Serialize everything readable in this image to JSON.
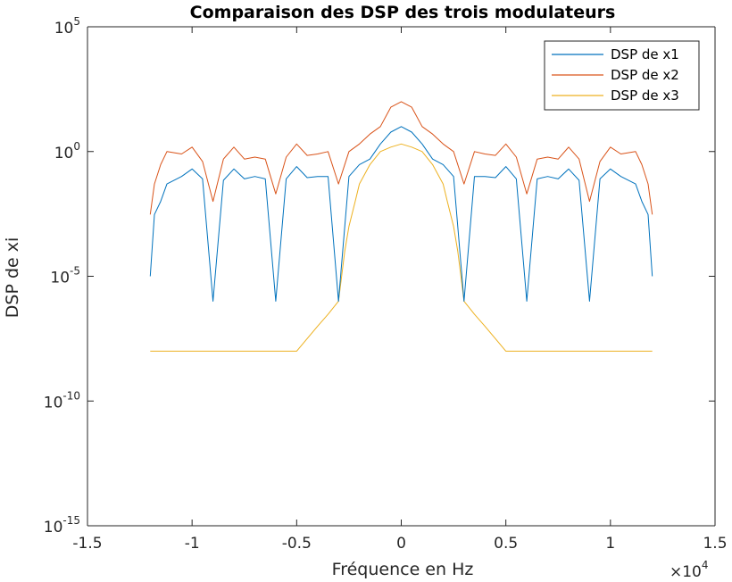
{
  "chart_data": {
    "type": "line",
    "title": "Comparaison des DSP des trois modulateurs",
    "xlabel": "Fréquence en Hz",
    "ylabel": "DSP de xi",
    "x_multiplier_label": "×10",
    "x_multiplier_exp": "4",
    "xlim": [
      -1.5,
      1.5
    ],
    "ylim": [
      1e-15,
      100000
    ],
    "yscale": "log",
    "grid": false,
    "legend_position": "top-right",
    "x_ticks": [
      "-1.5",
      "-1",
      "-0.5",
      "0",
      "0.5",
      "1",
      "1.5"
    ],
    "y_ticks": [
      {
        "base": "10",
        "exp": "-15",
        "value": 1e-15
      },
      {
        "base": "10",
        "exp": "-10",
        "value": 1e-10
      },
      {
        "base": "10",
        "exp": "-5",
        "value": 1e-05
      },
      {
        "base": "10",
        "exp": "0",
        "value": 1
      },
      {
        "base": "10",
        "exp": "5",
        "value": 100000
      }
    ],
    "series": [
      {
        "name": "DSP de x1",
        "color": "#0072BD",
        "x": [
          -1.2,
          -1.18,
          -1.15,
          -1.12,
          -1.05,
          -1.0,
          -0.95,
          -0.9,
          -0.85,
          -0.8,
          -0.75,
          -0.7,
          -0.65,
          -0.6,
          -0.55,
          -0.5,
          -0.45,
          -0.4,
          -0.35,
          -0.3,
          -0.25,
          -0.2,
          -0.15,
          -0.1,
          -0.05,
          0.0,
          0.05,
          0.1,
          0.15,
          0.2,
          0.25,
          0.3,
          0.35,
          0.4,
          0.45,
          0.5,
          0.55,
          0.6,
          0.65,
          0.7,
          0.75,
          0.8,
          0.85,
          0.9,
          0.95,
          1.0,
          1.05,
          1.12,
          1.15,
          1.18,
          1.2
        ],
        "y": [
          1e-05,
          0.003,
          0.01,
          0.05,
          0.1,
          0.2,
          0.08,
          1e-06,
          0.07,
          0.2,
          0.08,
          0.1,
          0.08,
          1e-06,
          0.08,
          0.25,
          0.09,
          0.1,
          0.1,
          1e-06,
          0.1,
          0.3,
          0.5,
          2,
          6,
          10,
          6,
          2,
          0.5,
          0.3,
          0.1,
          1e-06,
          0.1,
          0.1,
          0.09,
          0.25,
          0.08,
          1e-06,
          0.08,
          0.1,
          0.08,
          0.2,
          0.07,
          1e-06,
          0.08,
          0.2,
          0.1,
          0.05,
          0.01,
          0.003,
          1e-05
        ]
      },
      {
        "name": "DSP de x2",
        "color": "#D95319",
        "x": [
          -1.2,
          -1.18,
          -1.15,
          -1.12,
          -1.05,
          -1.0,
          -0.95,
          -0.9,
          -0.85,
          -0.8,
          -0.75,
          -0.7,
          -0.65,
          -0.6,
          -0.55,
          -0.5,
          -0.45,
          -0.4,
          -0.35,
          -0.3,
          -0.25,
          -0.2,
          -0.15,
          -0.1,
          -0.05,
          0.0,
          0.05,
          0.1,
          0.15,
          0.2,
          0.25,
          0.3,
          0.35,
          0.4,
          0.45,
          0.5,
          0.55,
          0.6,
          0.65,
          0.7,
          0.75,
          0.8,
          0.85,
          0.9,
          0.95,
          1.0,
          1.05,
          1.12,
          1.15,
          1.18,
          1.2
        ],
        "y": [
          0.003,
          0.05,
          0.3,
          1,
          0.8,
          1.5,
          0.4,
          0.01,
          0.5,
          1.5,
          0.5,
          0.6,
          0.5,
          0.02,
          0.6,
          2,
          0.7,
          0.8,
          1,
          0.05,
          1,
          2,
          5,
          10,
          60,
          100,
          60,
          10,
          5,
          2,
          1,
          0.05,
          1,
          0.8,
          0.7,
          2,
          0.6,
          0.02,
          0.5,
          0.6,
          0.5,
          1.5,
          0.5,
          0.01,
          0.4,
          1.5,
          0.8,
          1,
          0.3,
          0.05,
          0.003
        ]
      },
      {
        "name": "DSP de x3",
        "color": "#EDB120",
        "x": [
          -1.2,
          -1.1,
          -1.0,
          -0.9,
          -0.8,
          -0.7,
          -0.6,
          -0.5,
          -0.4,
          -0.35,
          -0.3,
          -0.27,
          -0.25,
          -0.22,
          -0.2,
          -0.15,
          -0.1,
          -0.05,
          0.0,
          0.05,
          0.1,
          0.15,
          0.2,
          0.22,
          0.25,
          0.27,
          0.3,
          0.35,
          0.4,
          0.5,
          0.6,
          0.7,
          0.8,
          0.9,
          1.0,
          1.1,
          1.2
        ],
        "y": [
          1e-08,
          1e-08,
          1e-08,
          1e-08,
          1e-08,
          1e-08,
          1e-08,
          1e-08,
          1e-07,
          3e-07,
          1e-06,
          0.0001,
          0.001,
          0.01,
          0.05,
          0.3,
          1,
          1.5,
          2,
          1.5,
          1,
          0.3,
          0.05,
          0.01,
          0.001,
          0.0001,
          1e-06,
          3e-07,
          1e-07,
          1e-08,
          1e-08,
          1e-08,
          1e-08,
          1e-08,
          1e-08,
          1e-08,
          1e-08
        ]
      }
    ]
  }
}
